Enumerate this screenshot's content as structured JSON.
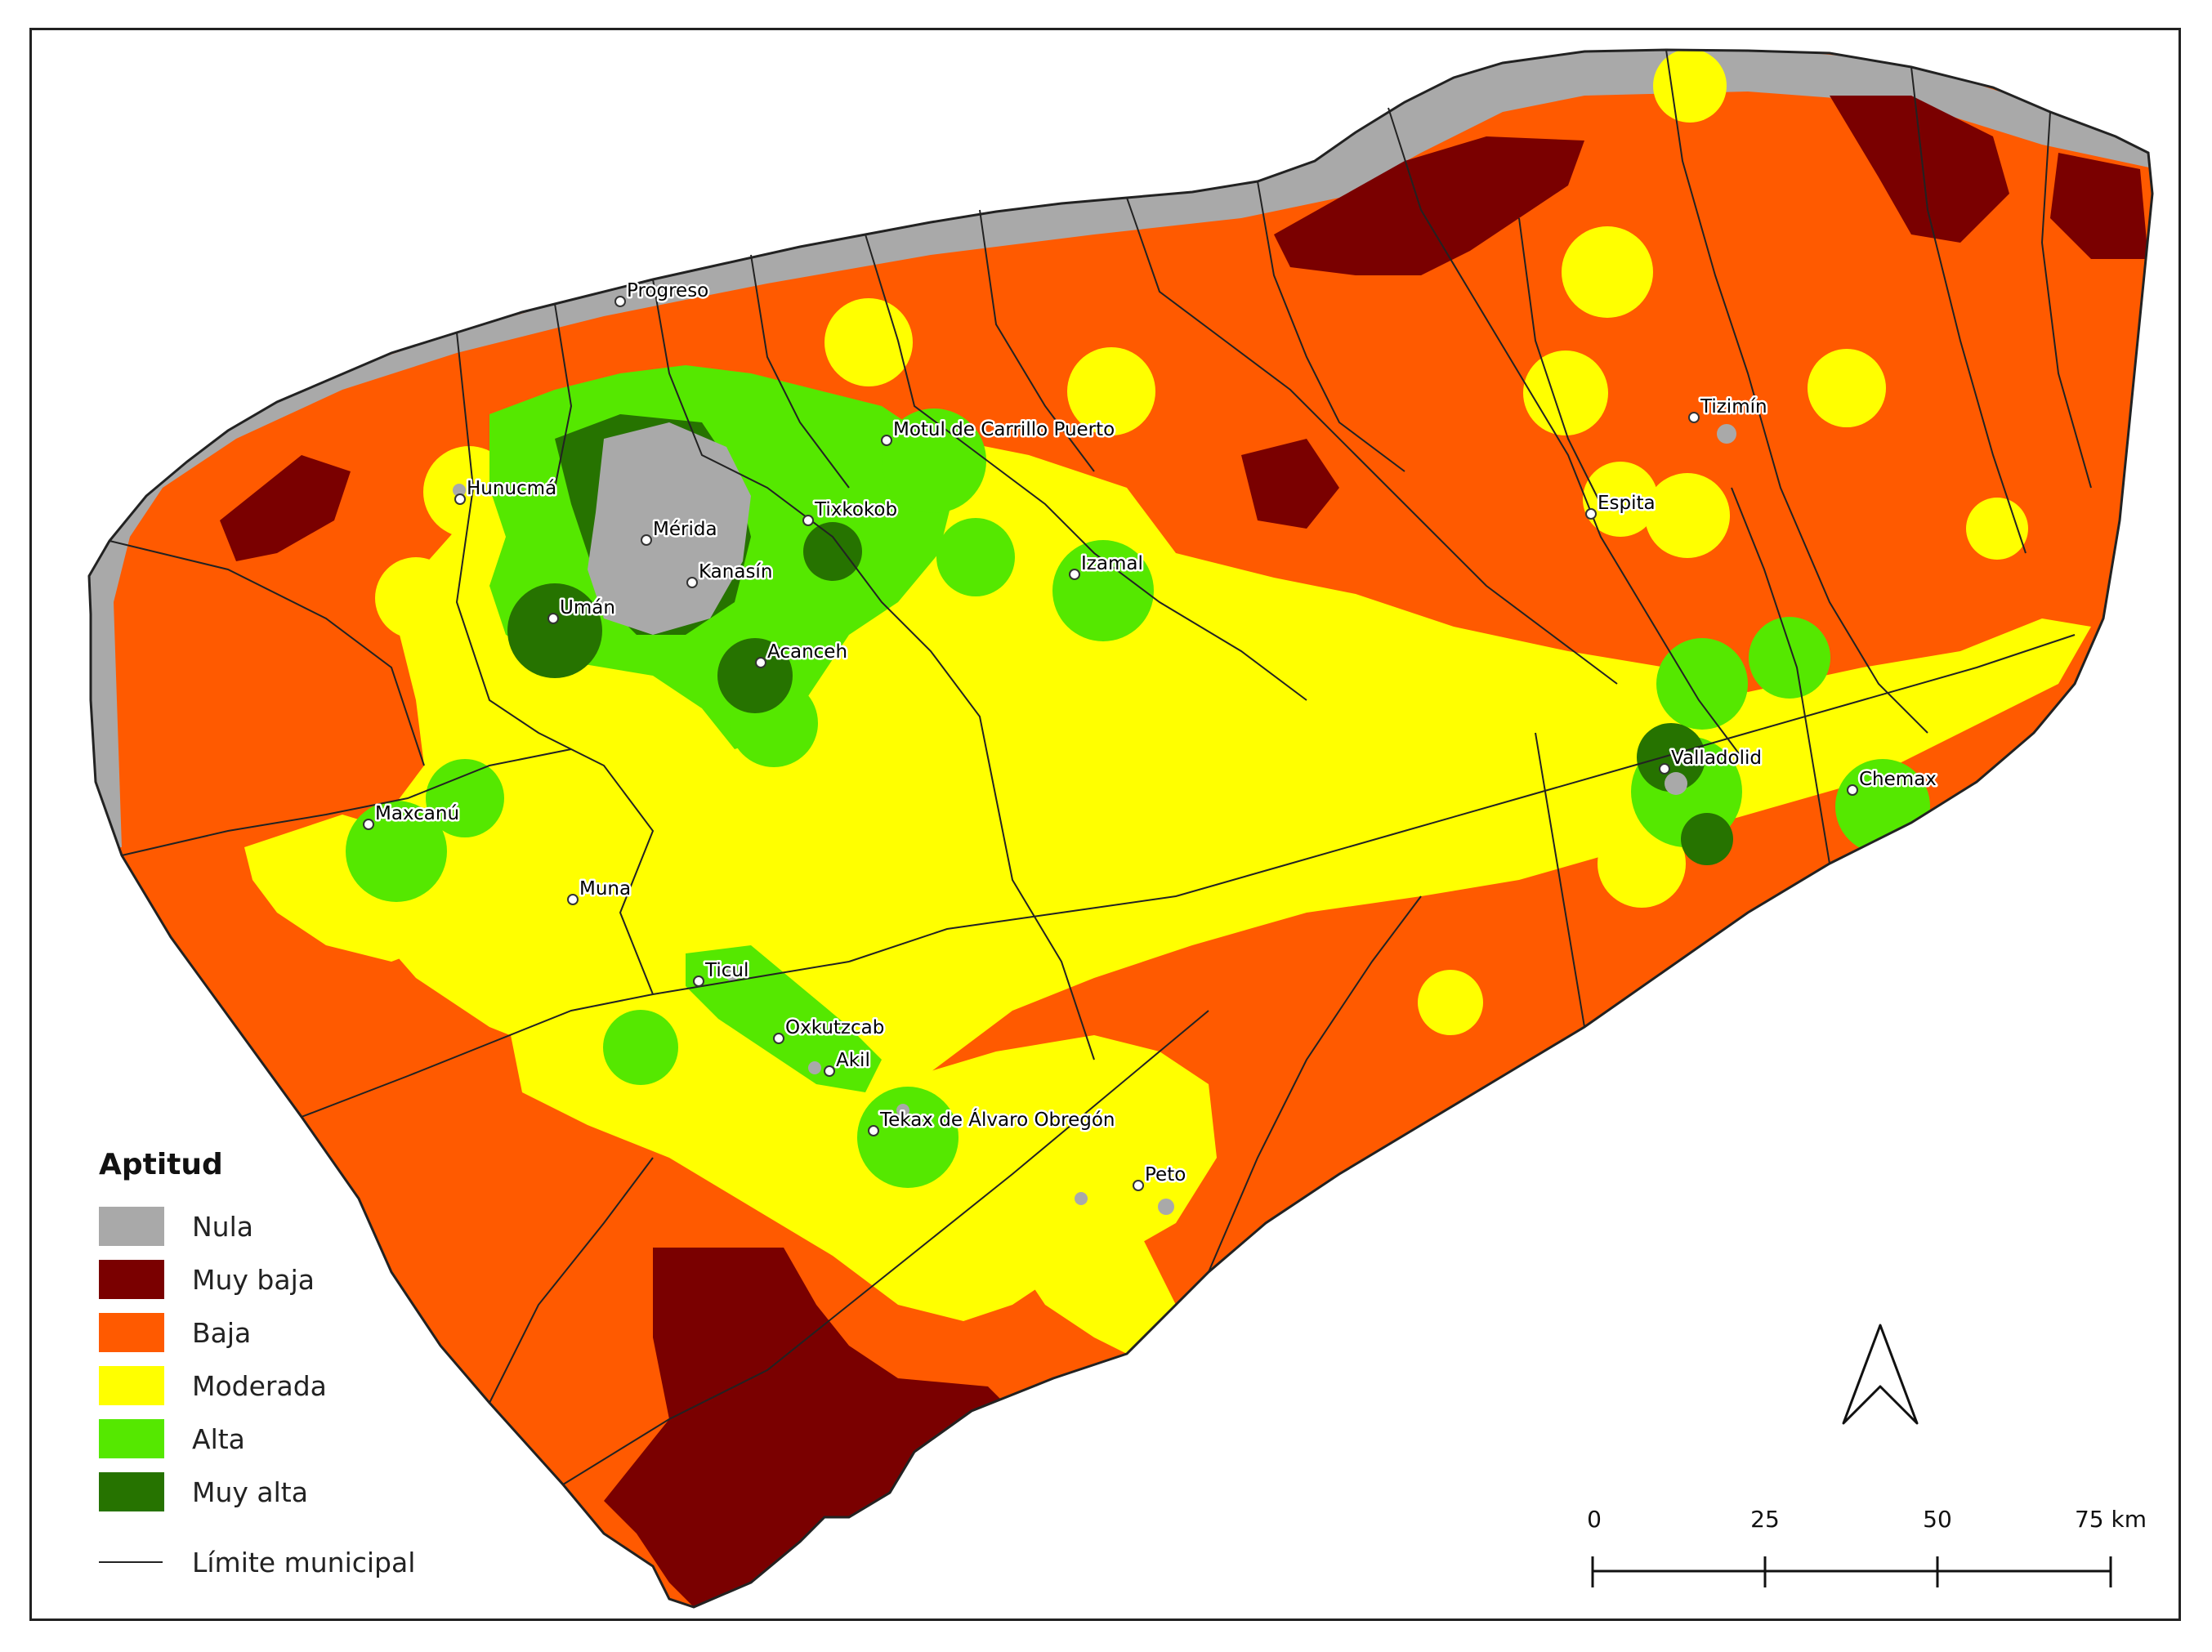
{
  "colors": {
    "nula": "#a9a9a9",
    "muy_baja": "#7a0000",
    "baja": "#ff5a00",
    "moderada": "#ffff00",
    "alta": "#55e800",
    "muy_alta": "#267300",
    "border": "#222222"
  },
  "legend": {
    "title": "Aptitud",
    "items": [
      {
        "key": "nula",
        "label": "Nula"
      },
      {
        "key": "muy_baja",
        "label": "Muy baja"
      },
      {
        "key": "baja",
        "label": "Baja"
      },
      {
        "key": "moderada",
        "label": "Moderada"
      },
      {
        "key": "alta",
        "label": "Alta"
      },
      {
        "key": "muy_alta",
        "label": "Muy alta"
      }
    ],
    "boundary_label": "Límite municipal"
  },
  "scale_bar": {
    "ticks": [
      "0",
      "25",
      "50",
      "75 km"
    ]
  },
  "north_arrow": "north-arrow-icon",
  "cities": [
    {
      "id": "progreso",
      "name": "Progreso"
    },
    {
      "id": "hunucma",
      "name": "Hunucmá"
    },
    {
      "id": "merida",
      "name": "Mérida"
    },
    {
      "id": "uman",
      "name": "Umán"
    },
    {
      "id": "kanasin",
      "name": "Kanasín"
    },
    {
      "id": "tixkokob",
      "name": "Tixkokob"
    },
    {
      "id": "motul",
      "name": "Motul de Carrillo Puerto"
    },
    {
      "id": "izamal",
      "name": "Izamal"
    },
    {
      "id": "acanceh",
      "name": "Acanceh"
    },
    {
      "id": "tizimin",
      "name": "Tizimín"
    },
    {
      "id": "espita",
      "name": "Espita"
    },
    {
      "id": "valladolid",
      "name": "Valladolid"
    },
    {
      "id": "chemax",
      "name": "Chemax"
    },
    {
      "id": "maxcanu",
      "name": "Maxcanú"
    },
    {
      "id": "muna",
      "name": "Muna"
    },
    {
      "id": "ticul",
      "name": "Ticul"
    },
    {
      "id": "oxkutzcab",
      "name": "Oxkutzcab"
    },
    {
      "id": "akil",
      "name": "Akil"
    },
    {
      "id": "tekax",
      "name": "Tekax de Álvaro Obregón"
    },
    {
      "id": "peto",
      "name": "Peto"
    }
  ]
}
